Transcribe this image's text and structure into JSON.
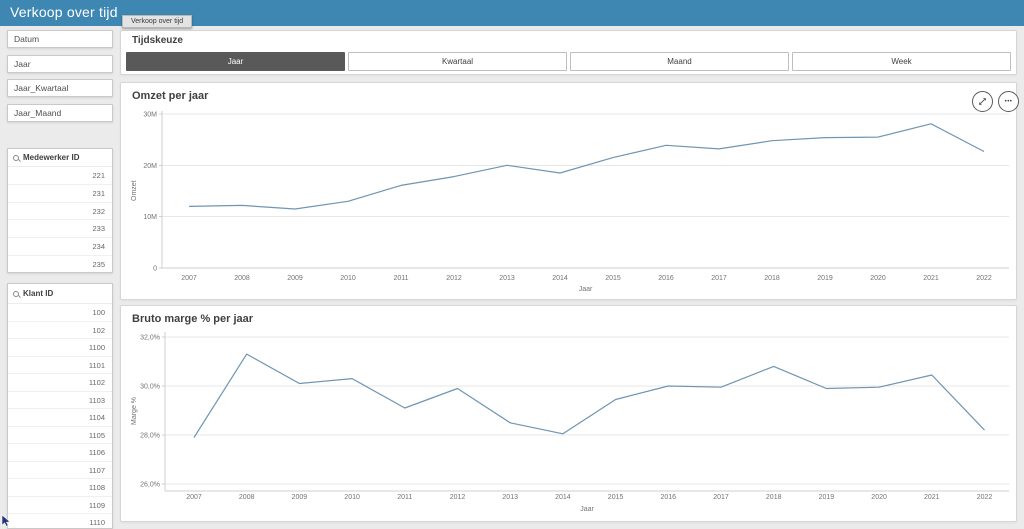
{
  "app": {
    "header_title": "Verkoop over tijd",
    "sheet_tab": "Verkoop over tijd"
  },
  "colors": {
    "header_bg": "#3d87b2",
    "selected_button_bg": "#595959",
    "line_color": "#6f95b2",
    "grid_color": "#e7e7e7",
    "axis_color": "#cfcfcf",
    "axis_text_color": "#737373"
  },
  "icons": {
    "search": "magnifier",
    "expand": "diagonal-arrows",
    "more_menu": "•••"
  },
  "sidebar": {
    "filters": [
      "Datum",
      "Jaar",
      "Jaar_Kwartaal",
      "Jaar_Maand"
    ],
    "listboxes": [
      {
        "title": "Medewerker ID",
        "values": [
          "221",
          "231",
          "232",
          "233",
          "234",
          "235"
        ]
      },
      {
        "title": "Klant ID",
        "values": [
          "100",
          "102",
          "1100",
          "1101",
          "1102",
          "1103",
          "1104",
          "1105",
          "1106",
          "1107",
          "1108",
          "1109",
          "1110"
        ]
      }
    ]
  },
  "timepicker": {
    "title": "Tijdskeuze",
    "options": [
      "Jaar",
      "Kwartaal",
      "Maand",
      "Week"
    ],
    "selected": "Jaar"
  },
  "chart_data": [
    {
      "type": "line",
      "title": "Omzet per jaar",
      "xlabel": "Jaar",
      "ylabel": "Omzet",
      "x": [
        2007,
        2008,
        2009,
        2010,
        2011,
        2012,
        2013,
        2014,
        2015,
        2016,
        2017,
        2018,
        2019,
        2020,
        2021,
        2022
      ],
      "values": [
        12.0,
        12.2,
        11.5,
        13.0,
        16.1,
        17.8,
        20.0,
        18.5,
        21.5,
        23.9,
        23.2,
        24.8,
        25.4,
        25.5,
        28.1,
        22.7
      ],
      "value_unit": "millions",
      "ylim": [
        0,
        30
      ],
      "y_ticks": [
        {
          "value": 0,
          "label": "0"
        },
        {
          "value": 10,
          "label": "10M"
        },
        {
          "value": 20,
          "label": "20M"
        },
        {
          "value": 30,
          "label": "30M"
        }
      ],
      "grid": "horizontal",
      "legend": "none",
      "line_color": "#6f95b2"
    },
    {
      "type": "line",
      "title": "Bruto marge % per jaar",
      "xlabel": "Jaar",
      "ylabel": "Marge %",
      "x": [
        2007,
        2008,
        2009,
        2010,
        2011,
        2012,
        2013,
        2014,
        2015,
        2016,
        2017,
        2018,
        2019,
        2020,
        2021,
        2022
      ],
      "values": [
        27.9,
        31.3,
        30.1,
        30.3,
        29.1,
        29.9,
        28.5,
        28.05,
        29.45,
        30.0,
        29.95,
        30.8,
        29.9,
        29.95,
        30.45,
        28.2
      ],
      "value_unit": "percent",
      "ylim": [
        26,
        32
      ],
      "y_ticks": [
        {
          "value": 26,
          "label": "26,0%"
        },
        {
          "value": 28,
          "label": "28,0%"
        },
        {
          "value": 30,
          "label": "30,0%"
        },
        {
          "value": 32,
          "label": "32,0%"
        }
      ],
      "grid": "horizontal",
      "legend": "none",
      "line_color": "#6f95b2"
    }
  ]
}
